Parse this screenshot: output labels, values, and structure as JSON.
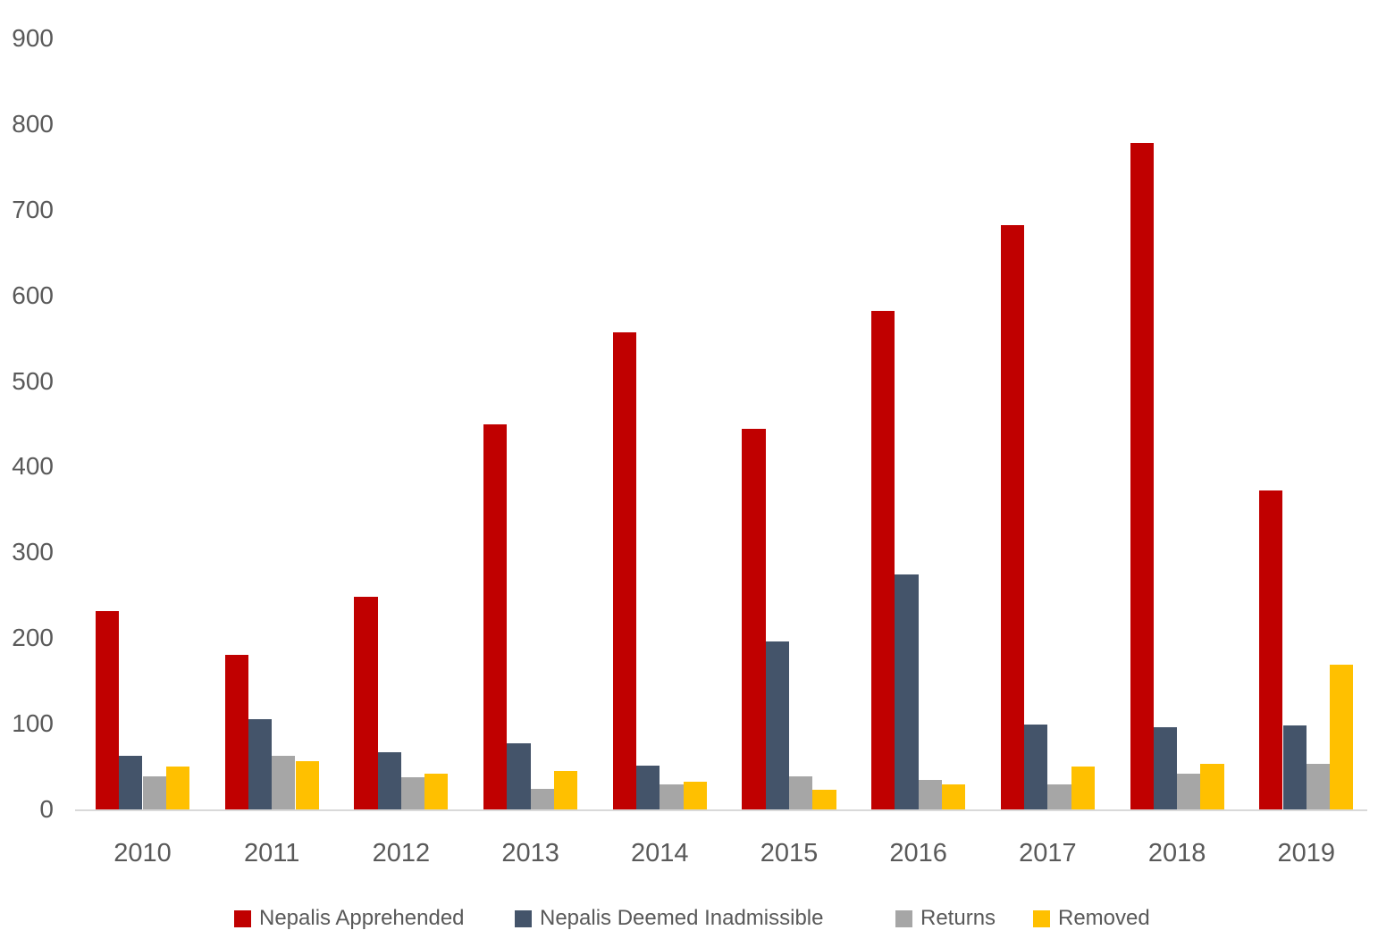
{
  "chart_data": {
    "type": "bar",
    "title": "",
    "xlabel": "",
    "ylabel": "",
    "categories": [
      "2010",
      "2011",
      "2012",
      "2013",
      "2014",
      "2015",
      "2016",
      "2017",
      "2018",
      "2019"
    ],
    "series": [
      {
        "name": "Nepalis Apprehended",
        "color": "#C00000",
        "values": [
          231,
          180,
          248,
          449,
          557,
          444,
          582,
          682,
          778,
          372
        ]
      },
      {
        "name": "Nepalis Deemed Inadmissible",
        "color": "#44546A",
        "values": [
          63,
          105,
          67,
          77,
          51,
          196,
          274,
          99,
          96,
          98
        ]
      },
      {
        "name": "Returns",
        "color": "#A6A6A6",
        "values": [
          39,
          63,
          38,
          24,
          29,
          39,
          34,
          29,
          42,
          53
        ]
      },
      {
        "name": "Removed",
        "color": "#FFC000",
        "values": [
          50,
          56,
          42,
          45,
          32,
          23,
          29,
          50,
          53,
          169
        ]
      }
    ],
    "ylim": [
      0,
      900
    ],
    "yticks": [
      0,
      100,
      200,
      300,
      400,
      500,
      600,
      700,
      800,
      900
    ],
    "grid": false,
    "legend_position": "bottom",
    "axis_text_color": "#595959",
    "axis_line_color": "#D9D9D9",
    "background_color": "#FFFFFF"
  }
}
